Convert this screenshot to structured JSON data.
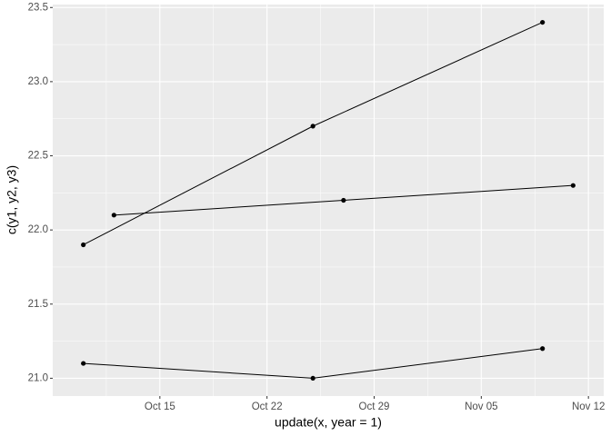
{
  "chart_data": {
    "type": "line",
    "xlabel": "update(x, year = 1)",
    "ylabel": "c(y1, y2, y3)",
    "series": [
      {
        "color": "#000000",
        "x": [
          "Oct 10",
          "Oct 25",
          "Nov 09"
        ],
        "values": [
          21.9,
          22.7,
          23.4
        ]
      },
      {
        "color": "#000000",
        "x": [
          "Oct 12",
          "Oct 27",
          "Nov 11"
        ],
        "values": [
          22.1,
          22.2,
          22.3
        ]
      },
      {
        "color": "#000000",
        "x": [
          "Oct 10",
          "Oct 25",
          "Nov 09"
        ],
        "values": [
          21.1,
          21.0,
          21.2
        ]
      }
    ],
    "xlim": [
      "Oct 08",
      "Nov 13"
    ],
    "xticks": [
      "Oct 15",
      "Oct 22",
      "Oct 29",
      "Nov 05",
      "Nov 12"
    ],
    "ylim": [
      20.88,
      23.52
    ],
    "yticks": [
      {
        "value": 21,
        "label": "21.0"
      },
      {
        "value": 21.5,
        "label": "21.5"
      },
      {
        "value": 22,
        "label": "22.0"
      },
      {
        "value": 22.5,
        "label": "22.5"
      },
      {
        "value": 23,
        "label": "23.0"
      },
      {
        "value": 23.5,
        "label": "23.5"
      }
    ],
    "grid": true
  }
}
